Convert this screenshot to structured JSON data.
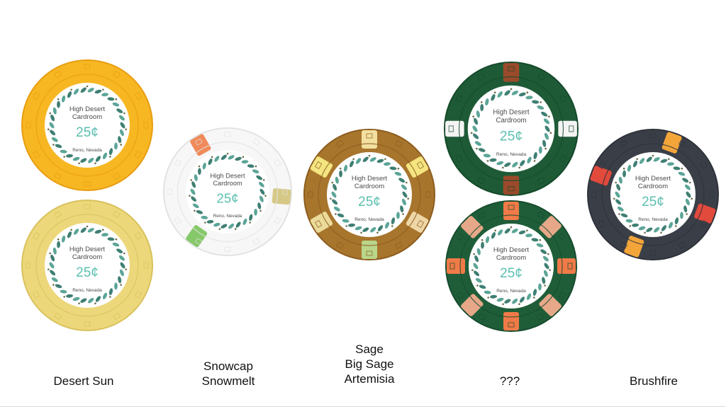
{
  "chip_face": {
    "title_line1": "High Desert",
    "title_line2": "Cardroom",
    "value": "25¢",
    "city": "Reno, Nevada"
  },
  "chips": [
    {
      "id": "desert-sun",
      "base": "#f7b722",
      "edge": "#e89d12",
      "inserts": [],
      "insert_colors": []
    },
    {
      "id": "desert-sun-pale",
      "base": "#ecd77a",
      "edge": "#d9c25d",
      "inserts": [],
      "insert_colors": []
    },
    {
      "id": "snowcap",
      "base": "#f7f7f7",
      "edge": "#e2e2e2",
      "inserts": [
        -30,
        95,
        215
      ],
      "insert_colors": [
        "#f08a5a",
        "#d6c987",
        "#86c96a"
      ]
    },
    {
      "id": "sage",
      "base": "#a8752d",
      "edge": "#8c5d1e",
      "inserts": [
        -60,
        0,
        60,
        120,
        180,
        240
      ],
      "insert_colors": [
        "#f4e580",
        "#f3e0a0",
        "#f4e580",
        "#efd6a6",
        "#b9d68a",
        "#eadb9a"
      ]
    },
    {
      "id": "unknown-dark",
      "base": "#1e5a36",
      "edge": "#154a2b",
      "inserts": [
        -90,
        0,
        90,
        180
      ],
      "insert_colors": [
        "#f4f4f4",
        "#9a4a2a",
        "#f4f4f4",
        "#9a4a2a"
      ]
    },
    {
      "id": "unknown-striped",
      "base": "#1f5d39",
      "edge": "#174c2e",
      "inserts": [
        -90,
        -45,
        0,
        45,
        90,
        135,
        180,
        225
      ],
      "insert_colors": [
        "#f07a48",
        "#e6a888",
        "#f07a48",
        "#e6a888",
        "#f07a48",
        "#e6a888",
        "#f07a48",
        "#e6a888"
      ]
    },
    {
      "id": "brushfire",
      "base": "#3a3f47",
      "edge": "#2e323a",
      "inserts": [
        -70,
        20,
        110,
        200
      ],
      "insert_colors": [
        "#e24a3c",
        "#f4a53a",
        "#e24a3c",
        "#f4a53a"
      ]
    }
  ],
  "captions": {
    "desert_sun": "Desert Sun",
    "snowcap_line1": "Snowcap",
    "snowcap_line2": "Snowmelt",
    "sage_line1": "Sage",
    "sage_line2": "Big Sage",
    "sage_line3": "Artemisia",
    "unknown": "???",
    "brushfire": "Brushfire"
  }
}
